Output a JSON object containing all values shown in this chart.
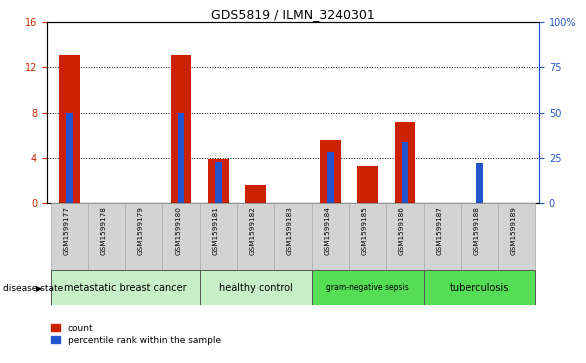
{
  "title": "GDS5819 / ILMN_3240301",
  "samples": [
    "GSM1599177",
    "GSM1599178",
    "GSM1599179",
    "GSM1599180",
    "GSM1599181",
    "GSM1599182",
    "GSM1599183",
    "GSM1599184",
    "GSM1599185",
    "GSM1599186",
    "GSM1599187",
    "GSM1599188",
    "GSM1599189"
  ],
  "count_values": [
    13.1,
    0,
    0,
    13.1,
    3.9,
    1.6,
    0,
    5.6,
    3.3,
    7.2,
    0,
    0,
    0
  ],
  "percentile_values": [
    50,
    0,
    0,
    50,
    23,
    0,
    0,
    28,
    0,
    34,
    0,
    22,
    0
  ],
  "groups": [
    {
      "label": "metastatic breast cancer",
      "start": 0,
      "end": 3,
      "color": "#c8f0c8"
    },
    {
      "label": "healthy control",
      "start": 4,
      "end": 6,
      "color": "#c8f0c8"
    },
    {
      "label": "gram-negative sepsis",
      "start": 7,
      "end": 9,
      "color": "#55dd55"
    },
    {
      "label": "tuberculosis",
      "start": 10,
      "end": 12,
      "color": "#55dd55"
    }
  ],
  "ylim_left": [
    0,
    16
  ],
  "ylim_right": [
    0,
    100
  ],
  "yticks_left": [
    0,
    4,
    8,
    12,
    16
  ],
  "yticks_right": [
    0,
    25,
    50,
    75,
    100
  ],
  "bar_color_count": "#cc2200",
  "bar_color_pct": "#2255cc",
  "background_color": "#ffffff",
  "xticklabel_bg": "#d3d3d3",
  "grid_dotted_at": [
    4,
    8,
    12
  ]
}
